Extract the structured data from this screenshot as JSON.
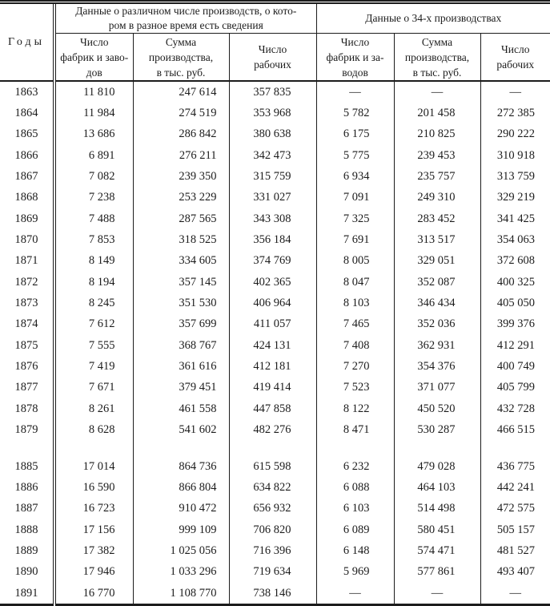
{
  "table": {
    "title_semantic": "factories-production-workers-by-year",
    "missing_value": "—",
    "text_color": "#1c1c1c",
    "year_header": "Годы",
    "groups": [
      {
        "label": "Данные о различном числе производств, о кото-\nром в разное время есть сведения"
      },
      {
        "label": "Данные о 34-х производствах"
      }
    ],
    "sub_headers": [
      "Число\nфабрик и заво-\nдов",
      "Сумма\nпроизводства,\nв тыс. руб.",
      "Число\nрабочих",
      "Число\nфабрик и за-\nводов",
      "Сумма\nпроизводства,\nв тыс. руб.",
      "Число\nрабочих"
    ],
    "sections": [
      {
        "rows": [
          [
            "1863",
            "11 810",
            "247 614",
            "357 835",
            "—",
            "—",
            "—"
          ],
          [
            "1864",
            "11 984",
            "274 519",
            "353 968",
            "5 782",
            "201 458",
            "272 385"
          ],
          [
            "1865",
            "13 686",
            "286 842",
            "380 638",
            "6 175",
            "210 825",
            "290 222"
          ],
          [
            "1866",
            "6 891",
            "276 211",
            "342 473",
            "5 775",
            "239 453",
            "310 918"
          ],
          [
            "1867",
            "7 082",
            "239 350",
            "315 759",
            "6 934",
            "235 757",
            "313 759"
          ],
          [
            "1868",
            "7 238",
            "253 229",
            "331 027",
            "7 091",
            "249 310",
            "329 219"
          ],
          [
            "1869",
            "7 488",
            "287 565",
            "343 308",
            "7 325",
            "283 452",
            "341 425"
          ],
          [
            "1870",
            "7 853",
            "318 525",
            "356 184",
            "7 691",
            "313 517",
            "354 063"
          ],
          [
            "1871",
            "8 149",
            "334 605",
            "374 769",
            "8 005",
            "329 051",
            "372 608"
          ],
          [
            "1872",
            "8 194",
            "357 145",
            "402 365",
            "8 047",
            "352 087",
            "400 325"
          ],
          [
            "1873",
            "8 245",
            "351 530",
            "406 964",
            "8 103",
            "346 434",
            "405 050"
          ],
          [
            "1874",
            "7 612",
            "357 699",
            "411 057",
            "7 465",
            "352 036",
            "399 376"
          ],
          [
            "1875",
            "7 555",
            "368 767",
            "424 131",
            "7 408",
            "362 931",
            "412 291"
          ],
          [
            "1876",
            "7 419",
            "361 616",
            "412 181",
            "7 270",
            "354 376",
            "400 749"
          ],
          [
            "1877",
            "7 671",
            "379 451",
            "419 414",
            "7 523",
            "371 077",
            "405 799"
          ],
          [
            "1878",
            "8 261",
            "461 558",
            "447 858",
            "8 122",
            "450 520",
            "432 728"
          ],
          [
            "1879",
            "8 628",
            "541 602",
            "482 276",
            "8 471",
            "530 287",
            "466 515"
          ]
        ]
      },
      {
        "rows": [
          [
            "1885",
            "17 014",
            "864 736",
            "615 598",
            "6 232",
            "479 028",
            "436 775"
          ],
          [
            "1886",
            "16 590",
            "866 804",
            "634 822",
            "6 088",
            "464 103",
            "442 241"
          ],
          [
            "1887",
            "16 723",
            "910 472",
            "656 932",
            "6 103",
            "514 498",
            "472 575"
          ],
          [
            "1888",
            "17 156",
            "999 109",
            "706 820",
            "6 089",
            "580 451",
            "505 157"
          ],
          [
            "1889",
            "17 382",
            "1 025 056",
            "716 396",
            "6 148",
            "574 471",
            "481 527"
          ],
          [
            "1890",
            "17 946",
            "1 033 296",
            "719 634",
            "5 969",
            "577 861",
            "493 407"
          ],
          [
            "1891",
            "16 770",
            "1 108 770",
            "738 146",
            "—",
            "—",
            "—"
          ]
        ]
      }
    ]
  }
}
